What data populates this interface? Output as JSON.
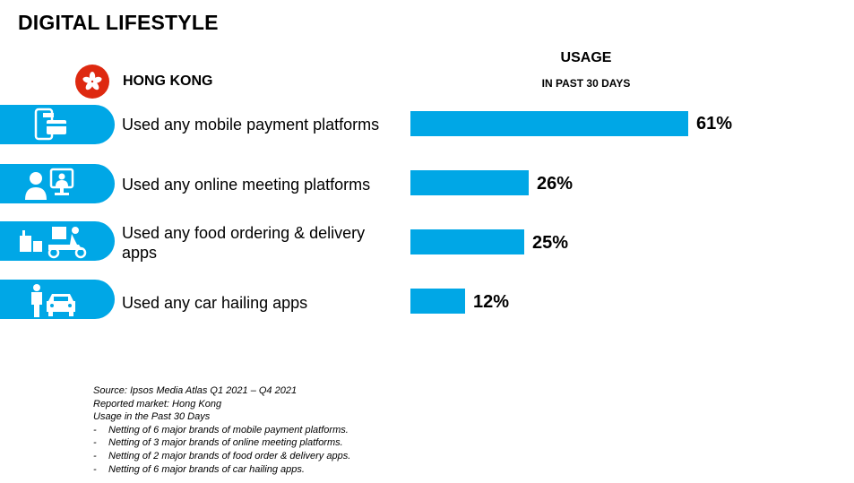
{
  "title": "DIGITAL LIFESTYLE",
  "region": "HONG KONG",
  "usage_header": {
    "title": "USAGE",
    "subtitle": "IN PAST 30 DAYS"
  },
  "colors": {
    "bar": "#00a7e6",
    "flag": "#de2910"
  },
  "chart_data": {
    "type": "bar",
    "orientation": "horizontal",
    "categories": [
      "Used any mobile payment platforms",
      "Used any online meeting platforms",
      "Used any food ordering & delivery apps",
      "Used any car hailing apps"
    ],
    "values": [
      61,
      26,
      25,
      12
    ],
    "value_labels": [
      "61%",
      "26%",
      "25%",
      "12%"
    ],
    "icons": [
      "mobile-payment-icon",
      "online-meeting-icon",
      "food-delivery-icon",
      "car-hailing-icon"
    ],
    "unit": "%",
    "xlim": [
      0,
      100
    ]
  },
  "notes": {
    "lines": [
      "Source: Ipsos Media Atlas Q1 2021 – Q4 2021",
      "Reported market: Hong Kong",
      "Usage in the Past 30 Days"
    ],
    "bullets": [
      "Netting of 6 major brands of mobile payment platforms.",
      "Netting of 3 major brands of online meeting platforms.",
      "Netting of 2 major brands of food order & delivery apps.",
      "Netting of 6 major brands of car hailing apps."
    ]
  }
}
